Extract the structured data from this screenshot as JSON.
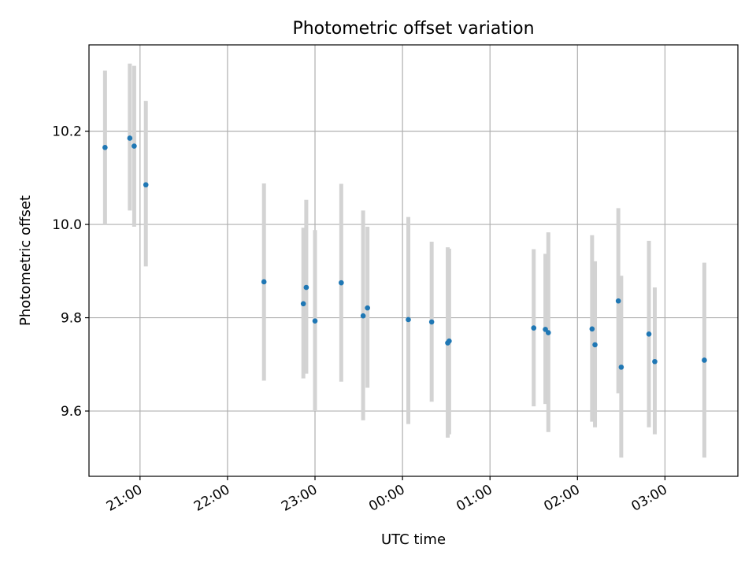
{
  "chart_data": {
    "type": "scatter",
    "title": "Photometric offset variation",
    "xlabel": "UTC time",
    "ylabel": "Photometric offset",
    "x_tick_labels": [
      "21:00",
      "22:00",
      "23:00",
      "00:00",
      "01:00",
      "02:00",
      "03:00"
    ],
    "y_ticks": [
      9.6,
      9.8,
      10.0,
      10.2
    ],
    "y_tick_labels": [
      "9.6",
      "9.8",
      "10.0",
      "10.2"
    ],
    "xlim": [
      "20:25",
      "03:50"
    ],
    "ylim": [
      9.46,
      10.385
    ],
    "grid": true,
    "marker_color": "#1f77b4",
    "errorbar_color": "#d3d3d3",
    "points": [
      {
        "x": "20:36",
        "y": 10.165,
        "ylow": 10.0,
        "yhigh": 10.33
      },
      {
        "x": "20:53",
        "y": 10.185,
        "ylow": 10.03,
        "yhigh": 10.345
      },
      {
        "x": "20:56",
        "y": 10.168,
        "ylow": 9.995,
        "yhigh": 10.34
      },
      {
        "x": "21:04",
        "y": 10.085,
        "ylow": 9.91,
        "yhigh": 10.265
      },
      {
        "x": "22:25",
        "y": 9.877,
        "ylow": 9.665,
        "yhigh": 10.088
      },
      {
        "x": "22:52",
        "y": 9.83,
        "ylow": 9.67,
        "yhigh": 9.993
      },
      {
        "x": "22:54",
        "y": 9.865,
        "ylow": 9.68,
        "yhigh": 10.053
      },
      {
        "x": "23:00",
        "y": 9.793,
        "ylow": 9.6,
        "yhigh": 9.988
      },
      {
        "x": "23:18",
        "y": 9.875,
        "ylow": 9.663,
        "yhigh": 10.087
      },
      {
        "x": "23:33",
        "y": 9.804,
        "ylow": 9.58,
        "yhigh": 10.03
      },
      {
        "x": "23:36",
        "y": 9.821,
        "ylow": 9.65,
        "yhigh": 9.995
      },
      {
        "x": "00:04",
        "y": 9.796,
        "ylow": 9.572,
        "yhigh": 10.016
      },
      {
        "x": "00:20",
        "y": 9.791,
        "ylow": 9.62,
        "yhigh": 9.963
      },
      {
        "x": "00:31",
        "y": 9.746,
        "ylow": 9.543,
        "yhigh": 9.951
      },
      {
        "x": "00:32",
        "y": 9.75,
        "ylow": 9.55,
        "yhigh": 9.948
      },
      {
        "x": "01:30",
        "y": 9.778,
        "ylow": 9.61,
        "yhigh": 9.947
      },
      {
        "x": "01:38",
        "y": 9.775,
        "ylow": 9.615,
        "yhigh": 9.937
      },
      {
        "x": "01:40",
        "y": 9.768,
        "ylow": 9.555,
        "yhigh": 9.983
      },
      {
        "x": "02:10",
        "y": 9.776,
        "ylow": 9.577,
        "yhigh": 9.977
      },
      {
        "x": "02:12",
        "y": 9.742,
        "ylow": 9.565,
        "yhigh": 9.921
      },
      {
        "x": "02:28",
        "y": 9.836,
        "ylow": 9.638,
        "yhigh": 10.035
      },
      {
        "x": "02:30",
        "y": 9.694,
        "ylow": 9.5,
        "yhigh": 9.89
      },
      {
        "x": "02:49",
        "y": 9.765,
        "ylow": 9.565,
        "yhigh": 9.965
      },
      {
        "x": "02:53",
        "y": 9.706,
        "ylow": 9.55,
        "yhigh": 9.865
      },
      {
        "x": "03:27",
        "y": 9.709,
        "ylow": 9.5,
        "yhigh": 9.918
      }
    ]
  }
}
